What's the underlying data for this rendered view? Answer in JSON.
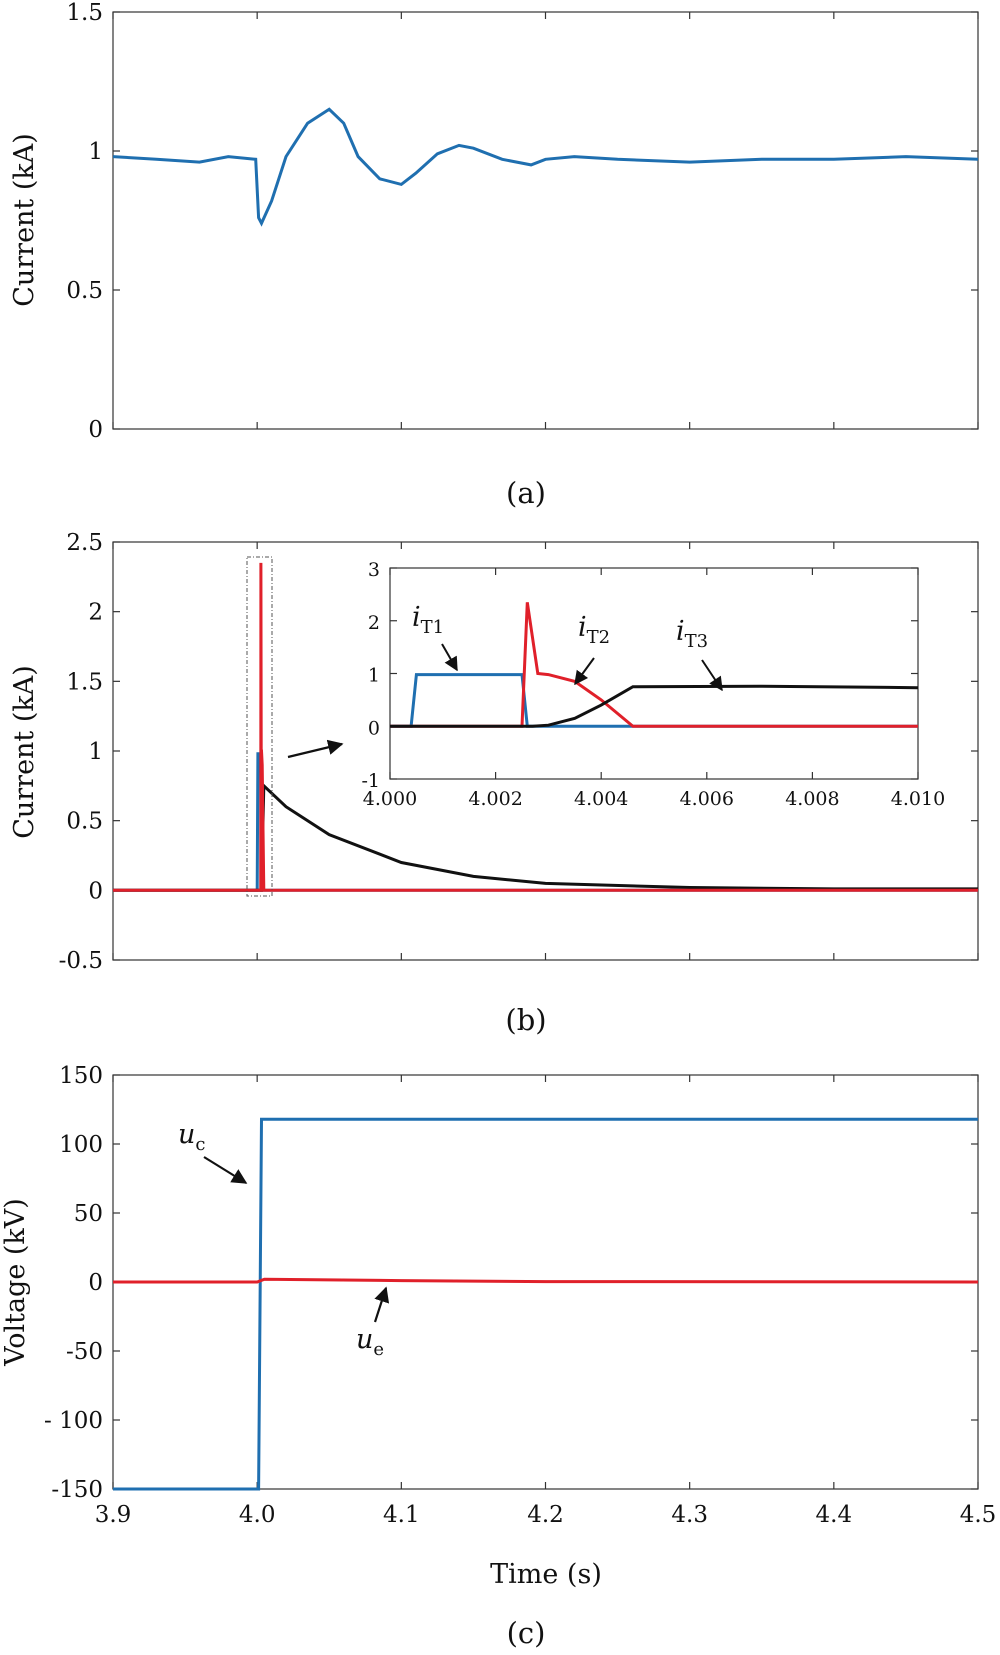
{
  "chart_data": [
    {
      "type": "line",
      "caption": "(a)",
      "ylabel": "Current (kA)",
      "xlim": [
        3.9,
        4.5
      ],
      "ylim": [
        0,
        1.5
      ],
      "yticks": [
        0,
        0.5,
        1,
        1.5
      ],
      "ytick_labels": [
        "0",
        "0.5",
        "1",
        "1.5"
      ],
      "grid": false,
      "series": [
        {
          "color": "#1f6fb0",
          "x": [
            3.9,
            3.93,
            3.96,
            3.98,
            3.999,
            4.001,
            4.003,
            4.01,
            4.02,
            4.035,
            4.05,
            4.06,
            4.07,
            4.085,
            4.1,
            4.11,
            4.125,
            4.14,
            4.15,
            4.17,
            4.19,
            4.2,
            4.22,
            4.25,
            4.3,
            4.35,
            4.4,
            4.45,
            4.5
          ],
          "y": [
            0.98,
            0.97,
            0.96,
            0.98,
            0.97,
            0.76,
            0.74,
            0.82,
            0.98,
            1.1,
            1.15,
            1.1,
            0.98,
            0.9,
            0.88,
            0.92,
            0.99,
            1.02,
            1.01,
            0.97,
            0.95,
            0.97,
            0.98,
            0.97,
            0.96,
            0.97,
            0.97,
            0.98,
            0.97
          ]
        }
      ]
    },
    {
      "type": "line",
      "caption": "(b)",
      "ylabel": "Current (kA)",
      "xlim": [
        3.9,
        4.5
      ],
      "ylim": [
        -0.5,
        2.5
      ],
      "yticks": [
        -0.5,
        0,
        0.5,
        1,
        1.5,
        2,
        2.5
      ],
      "ytick_labels": [
        "-0.5",
        "0",
        "0.5",
        "1",
        "1.5",
        "2",
        "2.5"
      ],
      "grid": false,
      "series": [
        {
          "color": "#1f6fb0",
          "x": [
            3.9,
            4.0,
            4.0005,
            4.0025,
            4.0026,
            4.5
          ],
          "y": [
            0,
            0,
            0.98,
            0.98,
            0,
            0
          ]
        },
        {
          "color": "#e0202a",
          "x": [
            3.9,
            4.0025,
            4.0026,
            4.0028,
            4.003,
            4.0035,
            4.004,
            4.0046,
            4.5
          ],
          "y": [
            0,
            0,
            2.35,
            1.0,
            1.0,
            0.9,
            0.5,
            0,
            0
          ]
        },
        {
          "color": "#111111",
          "x": [
            3.9,
            4.003,
            4.0046,
            4.02,
            4.05,
            4.1,
            4.15,
            4.2,
            4.3,
            4.4,
            4.5
          ],
          "y": [
            0,
            0,
            0.75,
            0.6,
            0.4,
            0.2,
            0.1,
            0.05,
            0.02,
            0.01,
            0.01
          ]
        }
      ],
      "inset": {
        "xlim": [
          4.0,
          4.01
        ],
        "ylim": [
          -1,
          3
        ],
        "xticks": [
          4.0,
          4.002,
          4.004,
          4.006,
          4.008,
          4.01
        ],
        "xtick_labels": [
          "4.000",
          "4.002",
          "4.004",
          "4.006",
          "4.008",
          "4.010"
        ],
        "yticks": [
          -1,
          0,
          1,
          2,
          3
        ],
        "ytick_labels": [
          "-1",
          "0",
          "1",
          "2",
          "3"
        ],
        "series": [
          {
            "label_main": "i",
            "label_sub": "T1",
            "color": "#1f6fb0",
            "x": [
              4.0,
              4.0004,
              4.0005,
              4.0025,
              4.0026,
              4.01
            ],
            "y": [
              0,
              0,
              0.98,
              0.98,
              0,
              0
            ]
          },
          {
            "label_main": "i",
            "label_sub": "T2",
            "color": "#e0202a",
            "x": [
              4.0,
              4.0025,
              4.0026,
              4.0028,
              4.003,
              4.0035,
              4.004,
              4.0046,
              4.01
            ],
            "y": [
              0,
              0,
              2.35,
              1.0,
              0.98,
              0.85,
              0.5,
              0,
              0
            ]
          },
          {
            "label_main": "i",
            "label_sub": "T3",
            "color": "#111111",
            "x": [
              4.0,
              4.0027,
              4.003,
              4.0035,
              4.004,
              4.0046,
              4.007,
              4.01
            ],
            "y": [
              0,
              0,
              0.02,
              0.15,
              0.4,
              0.75,
              0.76,
              0.73
            ]
          }
        ]
      }
    },
    {
      "type": "line",
      "caption": "(c)",
      "xlabel": "Time (s)",
      "ylabel": "Voltage (kV)",
      "xlim": [
        3.9,
        4.5
      ],
      "ylim": [
        -150,
        150
      ],
      "xticks": [
        3.9,
        4.0,
        4.1,
        4.2,
        4.3,
        4.4,
        4.5
      ],
      "xtick_labels": [
        "3.9",
        "4.0",
        "4.1",
        "4.2",
        "4.3",
        "4.4",
        "4.5"
      ],
      "yticks": [
        -150,
        -100,
        -50,
        0,
        50,
        100,
        150
      ],
      "ytick_labels": [
        "-150",
        "- 100",
        "-50",
        "0",
        "50",
        "100",
        "150"
      ],
      "grid": false,
      "series": [
        {
          "label_main": "u",
          "label_sub": "c",
          "color": "#1f6fb0",
          "x": [
            3.9,
            4.001,
            4.003,
            4.5
          ],
          "y": [
            -150,
            -150,
            118,
            118
          ]
        },
        {
          "label_main": "u",
          "label_sub": "e",
          "color": "#e0202a",
          "x": [
            3.9,
            4.0,
            4.005,
            4.05,
            4.1,
            4.2,
            4.5
          ],
          "y": [
            0,
            0,
            2,
            1.5,
            1,
            0.3,
            0
          ]
        }
      ]
    }
  ]
}
